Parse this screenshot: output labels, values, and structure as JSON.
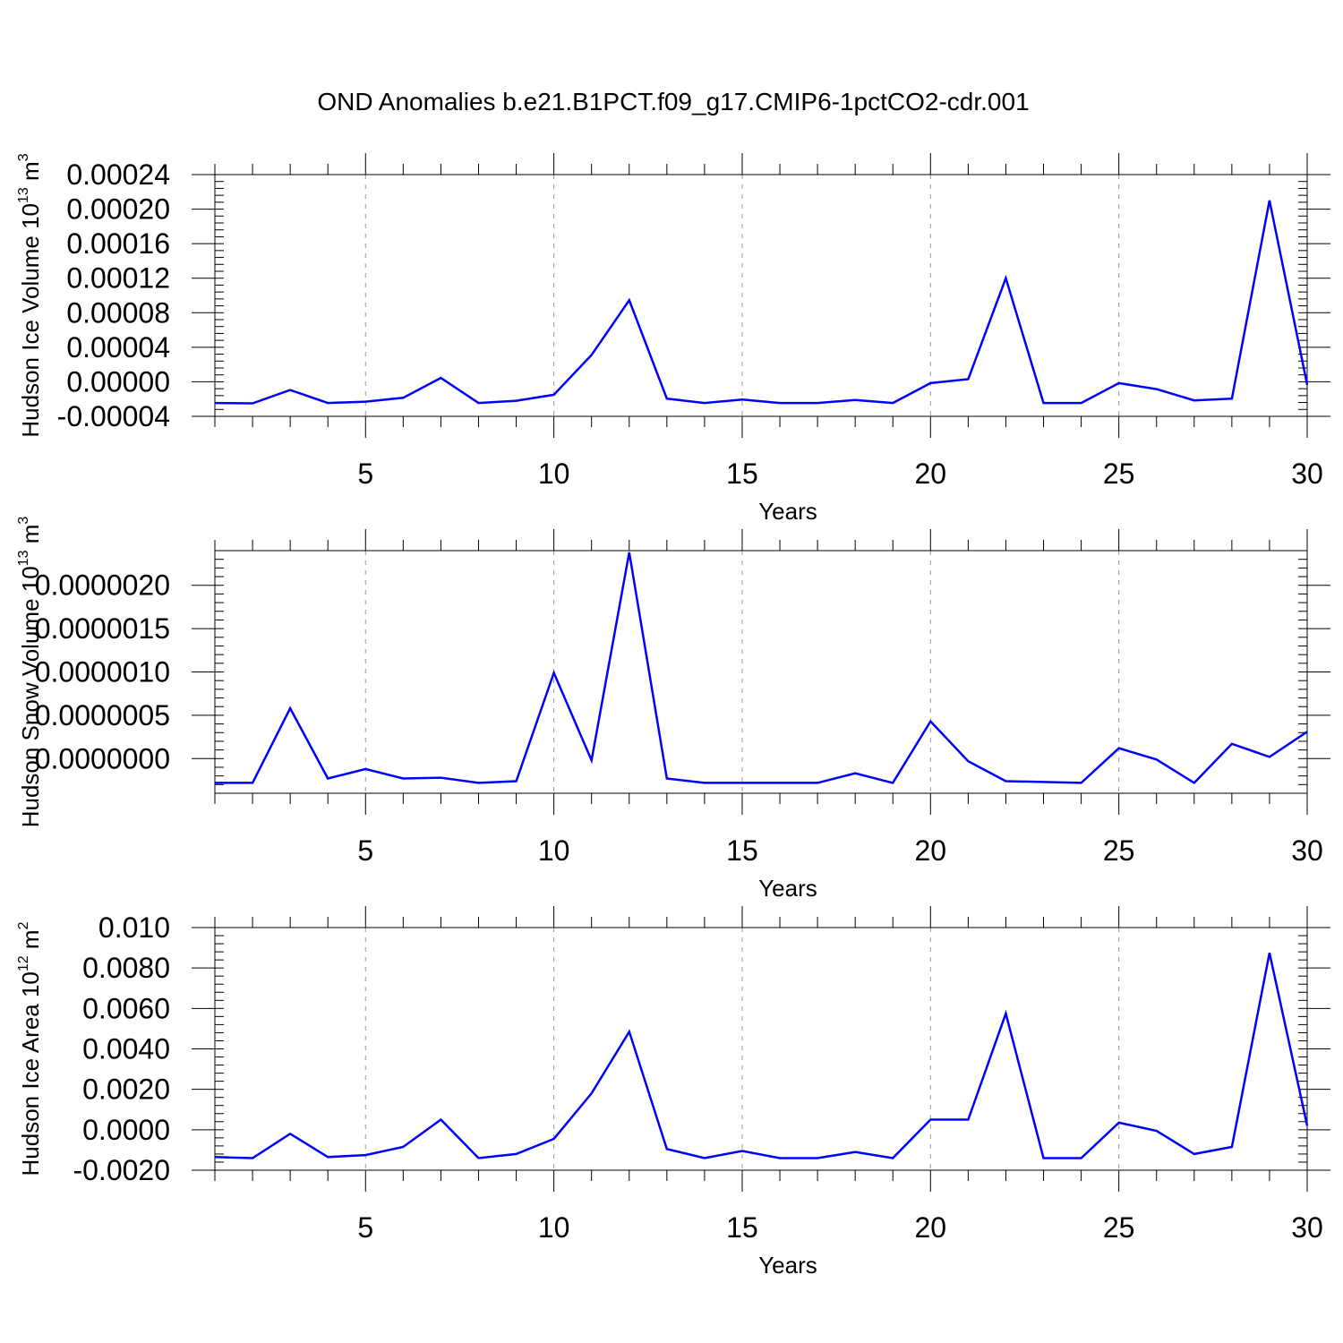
{
  "figure": {
    "title": "OND Anomalies b.e21.B1PCT.f09_g17.CMIP6-1pctCO2-cdr.001",
    "line_color": "#0000ff"
  },
  "chart_data": [
    {
      "type": "line",
      "xlabel": "Years",
      "ylabel": {
        "text": "Hudson Ice Volume 10",
        "exp": "13",
        "unit": " m",
        "unit_exp": "3"
      },
      "xlim": [
        1,
        30
      ],
      "ylim": [
        -4e-05,
        0.00024
      ],
      "xticks": [
        "5",
        "10",
        "15",
        "20",
        "25",
        "30"
      ],
      "xtick_values": [
        5,
        10,
        15,
        20,
        25,
        30
      ],
      "yticks": [
        "-0.00004",
        "0.00000",
        "0.00004",
        "0.00008",
        "0.00012",
        "0.00016",
        "0.00020",
        "0.00024"
      ],
      "ytick_values": [
        -4e-05,
        0,
        4e-05,
        8e-05,
        0.00012,
        0.00016,
        0.0002,
        0.00024
      ],
      "grid": "vertical dashed at major x ticks",
      "series": [
        {
          "x": [
            1,
            2,
            3,
            4,
            5,
            6,
            7,
            8,
            9,
            10,
            11,
            12,
            13,
            14,
            15,
            16,
            17,
            18,
            19,
            20,
            21,
            22,
            23,
            24,
            25,
            26,
            27,
            28,
            29,
            30
          ],
          "values": [
            -2.45e-05,
            -2.5e-05,
            -9.5e-06,
            -2.45e-05,
            -2.3e-05,
            -1.85e-05,
            4.5e-06,
            -2.45e-05,
            -2.2e-05,
            -1.5e-05,
            3.1e-05,
            9.45e-05,
            -1.95e-05,
            -2.45e-05,
            -2.05e-05,
            -2.45e-05,
            -2.45e-05,
            -2.1e-05,
            -2.45e-05,
            -1.5e-06,
            3e-06,
            0.00012,
            -2.45e-05,
            -2.45e-05,
            -1.5e-06,
            -8.5e-06,
            -2.15e-05,
            -1.95e-05,
            0.00021,
            -3.5e-06
          ]
        }
      ]
    },
    {
      "type": "line",
      "xlabel": "Years",
      "ylabel": {
        "text": "Hudson Snow Volume 10",
        "exp": "13",
        "unit": " m",
        "unit_exp": "3"
      },
      "xlim": [
        1,
        30
      ],
      "ylim": [
        -4e-07,
        2.4e-06
      ],
      "xticks": [
        "5",
        "10",
        "15",
        "20",
        "25",
        "30"
      ],
      "xtick_values": [
        5,
        10,
        15,
        20,
        25,
        30
      ],
      "yticks": [
        "0.0000000",
        "0.0000005",
        "0.0000010",
        "0.0000015",
        "0.0000020"
      ],
      "ytick_values": [
        0,
        5e-07,
        1e-06,
        1.5e-06,
        2e-06
      ],
      "grid": "vertical dashed at major x ticks",
      "series": [
        {
          "x": [
            1,
            2,
            3,
            4,
            5,
            6,
            7,
            8,
            9,
            10,
            11,
            12,
            13,
            14,
            15,
            16,
            17,
            18,
            19,
            20,
            21,
            22,
            23,
            24,
            25,
            26,
            27,
            28,
            29,
            30
          ],
          "values": [
            -2.8e-07,
            -2.8e-07,
            5.8e-07,
            -2.3e-07,
            -1.2e-07,
            -2.3e-07,
            -2.2e-07,
            -2.8e-07,
            -2.6e-07,
            9.9e-07,
            -2e-08,
            2.38e-06,
            -2.3e-07,
            -2.8e-07,
            -2.8e-07,
            -2.8e-07,
            -2.8e-07,
            -1.7e-07,
            -2.8e-07,
            4.3e-07,
            -3e-08,
            -2.6e-07,
            -2.7e-07,
            -2.8e-07,
            1.2e-07,
            -1e-08,
            -2.8e-07,
            1.7e-07,
            2e-08,
            3.1e-07
          ]
        }
      ]
    },
    {
      "type": "line",
      "xlabel": "Years",
      "ylabel": {
        "text": "Hudson Ice Area 10",
        "exp": "12",
        "unit": " m",
        "unit_exp": "2"
      },
      "xlim": [
        1,
        30
      ],
      "ylim": [
        -0.002,
        0.01
      ],
      "xticks": [
        "5",
        "10",
        "15",
        "20",
        "25",
        "30"
      ],
      "xtick_values": [
        5,
        10,
        15,
        20,
        25,
        30
      ],
      "yticks": [
        "-0.0020",
        "0.0000",
        "0.0020",
        "0.0040",
        "0.0060",
        "0.0080",
        "0.010"
      ],
      "ytick_values": [
        -0.002,
        0,
        0.002,
        0.004,
        0.006,
        0.008,
        0.01
      ],
      "grid": "vertical dashed at major x ticks",
      "series": [
        {
          "x": [
            1,
            2,
            3,
            4,
            5,
            6,
            7,
            8,
            9,
            10,
            11,
            12,
            13,
            14,
            15,
            16,
            17,
            18,
            19,
            20,
            21,
            22,
            23,
            24,
            25,
            26,
            27,
            28,
            29,
            30
          ],
          "values": [
            -0.00135,
            -0.0014,
            -0.0002,
            -0.00135,
            -0.00125,
            -0.00085,
            0.0005,
            -0.0014,
            -0.0012,
            -0.00045,
            0.0018,
            0.00485,
            -0.00095,
            -0.0014,
            -0.00105,
            -0.0014,
            -0.0014,
            -0.0011,
            -0.0014,
            0.0005,
            0.0005,
            0.00575,
            -0.0014,
            -0.0014,
            0.00035,
            -5e-05,
            -0.0012,
            -0.00085,
            0.00875,
            0.0002
          ]
        }
      ]
    }
  ]
}
